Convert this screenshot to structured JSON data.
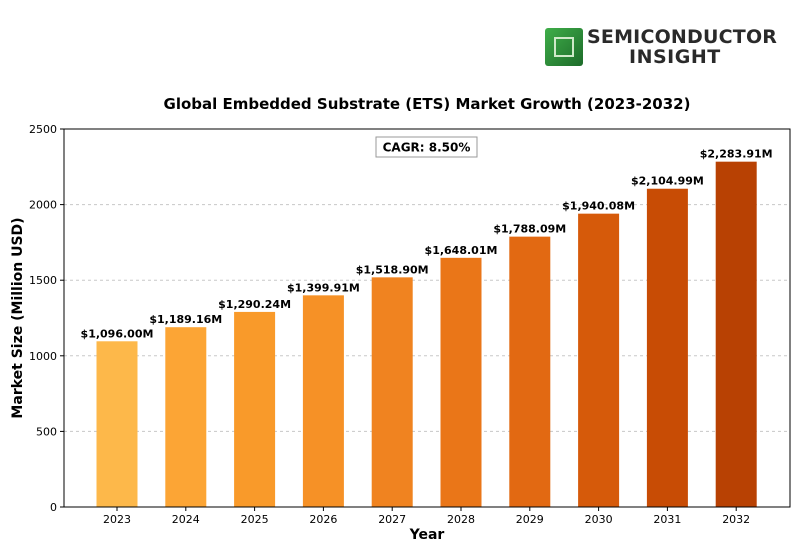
{
  "logo": {
    "line1": "SEMICONDUCTOR",
    "line2": "INSIGHT",
    "accent": "#3fae49"
  },
  "chart_data": {
    "type": "bar",
    "title": "Global Embedded Substrate (ETS) Market Growth (2023-2032)",
    "xlabel": "Year",
    "ylabel": "Market Size (Million USD)",
    "ylim": [
      0,
      2500
    ],
    "yticks": [
      0,
      500,
      1000,
      1500,
      2000,
      2500
    ],
    "grid": true,
    "annotation": "CAGR: 8.50%",
    "categories": [
      "2023",
      "2024",
      "2025",
      "2026",
      "2027",
      "2028",
      "2029",
      "2030",
      "2031",
      "2032"
    ],
    "values": [
      1096.0,
      1189.16,
      1290.24,
      1399.91,
      1518.9,
      1648.01,
      1788.09,
      1940.08,
      2104.99,
      2283.91
    ],
    "data_labels": [
      "$1,096.00M",
      "$1,189.16M",
      "$1,290.24M",
      "$1,399.91M",
      "$1,518.90M",
      "$1,648.01M",
      "$1,788.09M",
      "$1,940.08M",
      "$2,104.99M",
      "$2,283.91M"
    ],
    "colors": [
      "#FDB84A",
      "#FCA535",
      "#F99A2A",
      "#F69126",
      "#F08320",
      "#EA7618",
      "#E26912",
      "#D65A0A",
      "#C84C05",
      "#B84103"
    ]
  }
}
